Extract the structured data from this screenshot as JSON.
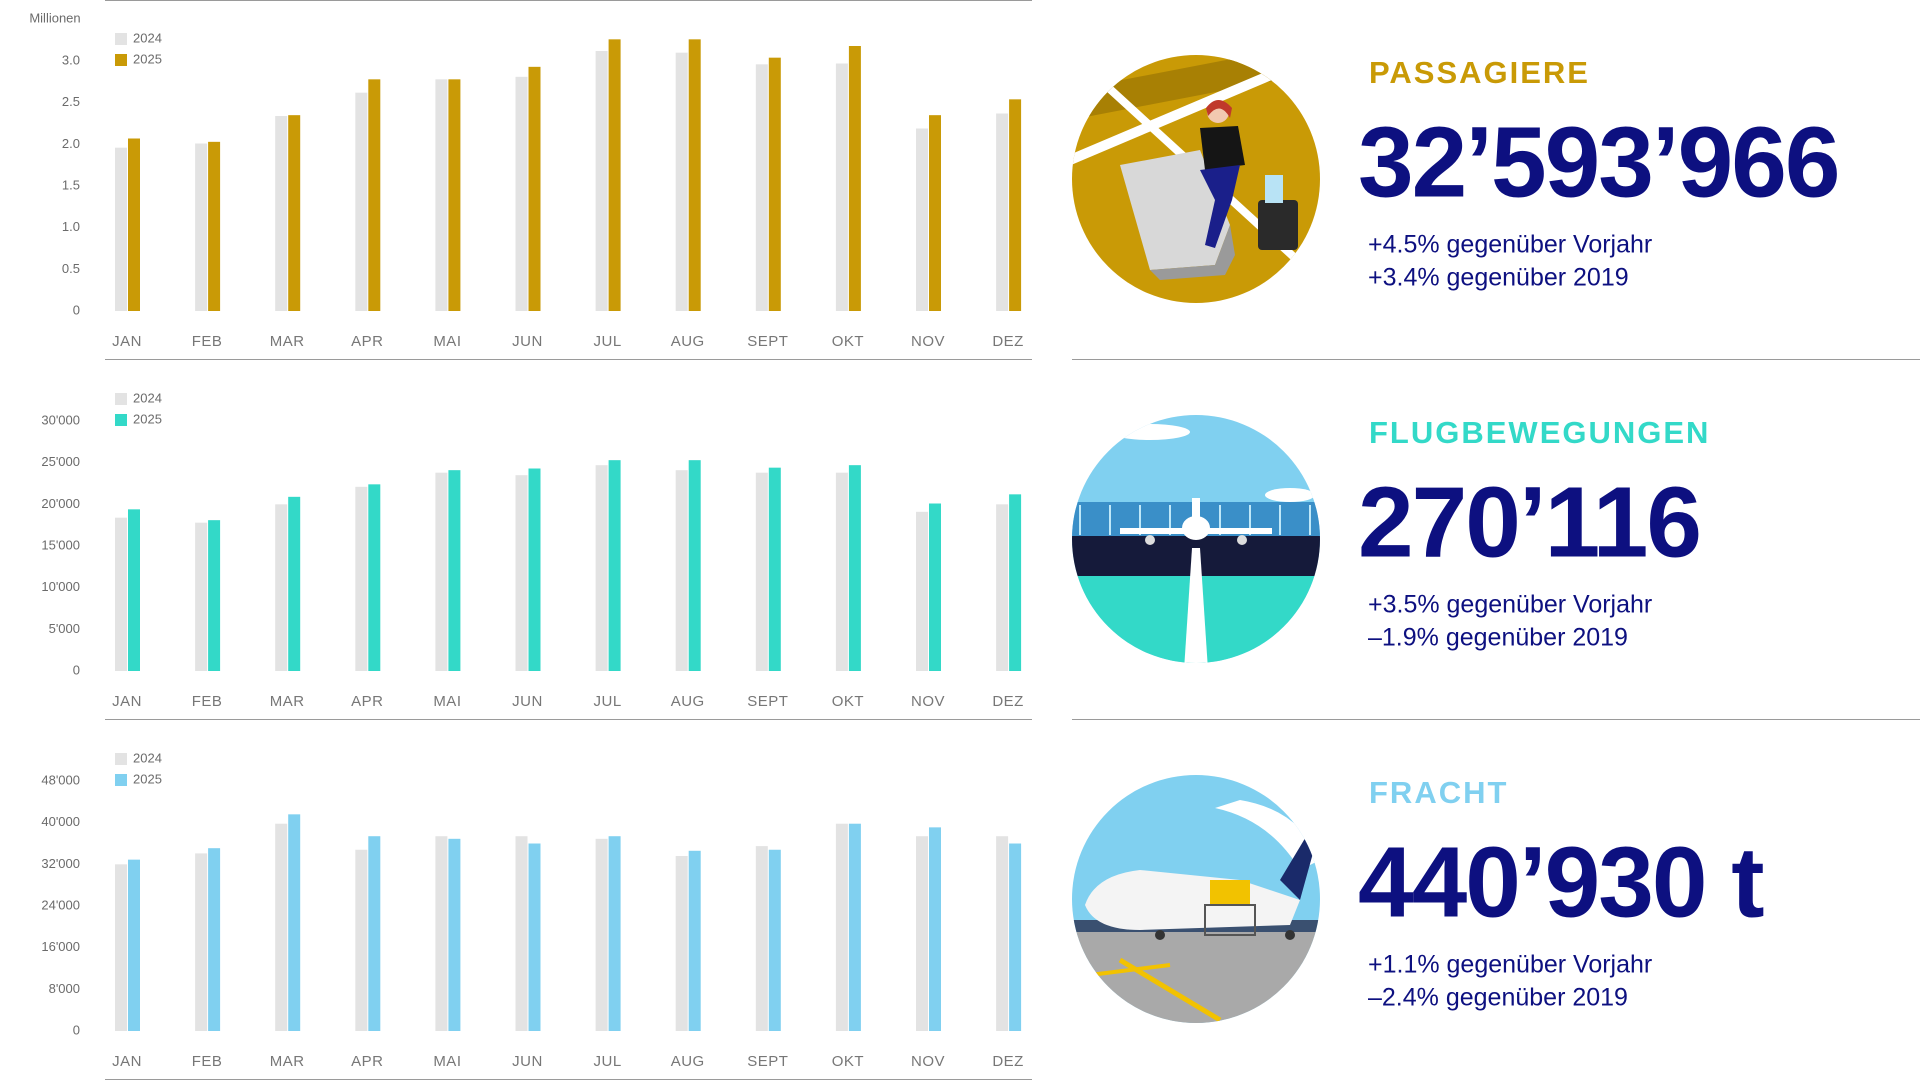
{
  "chart_data": [
    {
      "type": "bar",
      "y_label": "Millionen",
      "categories": [
        "JAN",
        "FEB",
        "MAR",
        "APR",
        "MAI",
        "JUN",
        "JUL",
        "AUG",
        "SEPT",
        "OKT",
        "NOV",
        "DEZ"
      ],
      "series": [
        {
          "name": "2024",
          "color": "#e3e3e3",
          "values": [
            1.96,
            2.01,
            2.34,
            2.62,
            2.78,
            2.81,
            3.12,
            3.1,
            2.96,
            2.97,
            2.19,
            2.37
          ]
        },
        {
          "name": "2025",
          "color": "#c99a06",
          "values": [
            2.07,
            2.03,
            2.35,
            2.78,
            2.78,
            2.93,
            3.26,
            3.26,
            3.04,
            3.18,
            2.35,
            2.54
          ]
        }
      ],
      "ylim": [
        0,
        3.3
      ],
      "yticks": [
        0,
        0.5,
        {
          "value": 1,
          "label": "1.0"
        },
        1.5,
        {
          "value": 2,
          "label": "2.0"
        },
        2.5,
        {
          "value": 3,
          "label": "3.0"
        }
      ]
    },
    {
      "type": "bar",
      "categories": [
        "JAN",
        "FEB",
        "MAR",
        "APR",
        "MAI",
        "JUN",
        "JUL",
        "AUG",
        "SEPT",
        "OKT",
        "NOV",
        "DEZ"
      ],
      "series": [
        {
          "name": "2024",
          "color": "#e3e3e3",
          "values": [
            18400,
            17800,
            20000,
            22100,
            23800,
            23500,
            24700,
            24100,
            23800,
            23800,
            19100,
            20000
          ]
        },
        {
          "name": "2025",
          "color": "#33d9c8",
          "values": [
            19400,
            18100,
            20900,
            22400,
            24100,
            24300,
            25300,
            25300,
            24400,
            24700,
            20100,
            21200
          ]
        }
      ],
      "ylim": [
        0,
        33000
      ],
      "yticks": [
        0,
        {
          "value": 5000,
          "label": "5'000"
        },
        {
          "value": 10000,
          "label": "10'000"
        },
        {
          "value": 15000,
          "label": "15'000"
        },
        {
          "value": 20000,
          "label": "20'000"
        },
        {
          "value": 25000,
          "label": "25'000"
        },
        {
          "value": 30000,
          "label": "30'000"
        }
      ]
    },
    {
      "type": "bar",
      "categories": [
        "JAN",
        "FEB",
        "MAR",
        "APR",
        "MAI",
        "JUN",
        "JUL",
        "AUG",
        "SEPT",
        "OKT",
        "NOV",
        "DEZ"
      ],
      "series": [
        {
          "name": "2024",
          "color": "#e3e3e3",
          "values": [
            32000,
            34100,
            39800,
            34800,
            37400,
            37400,
            36900,
            33600,
            35500,
            39800,
            37400,
            37400
          ]
        },
        {
          "name": "2025",
          "color": "#80d0f0",
          "values": [
            32900,
            35100,
            41600,
            37400,
            36900,
            36000,
            37400,
            34600,
            34800,
            39800,
            39100,
            36000
          ]
        }
      ],
      "ylim": [
        0,
        52800
      ],
      "yticks": [
        0,
        {
          "value": 8000,
          "label": "8'000"
        },
        {
          "value": 16000,
          "label": "16'000"
        },
        {
          "value": 24000,
          "label": "24'000"
        },
        {
          "value": 32000,
          "label": "32'000"
        },
        {
          "value": 40000,
          "label": "40'000"
        },
        {
          "value": 48000,
          "label": "48'000"
        }
      ]
    }
  ],
  "panels": [
    {
      "title": "PASSAGIERE",
      "value": "32’593’966",
      "notes": [
        "+4.5% gegenüber Vorjahr",
        "+3.4% gegenüber 2019"
      ]
    },
    {
      "title": "FLUGBEWEGUNGEN",
      "value": "270’116",
      "notes": [
        "+3.5% gegenüber Vorjahr",
        "–1.9% gegenüber 2019"
      ]
    },
    {
      "title": "FRACHT",
      "value": "440’930 t",
      "notes": [
        "+1.1% gegenüber Vorjahr",
        "–2.4% gegenüber 2019"
      ]
    }
  ]
}
